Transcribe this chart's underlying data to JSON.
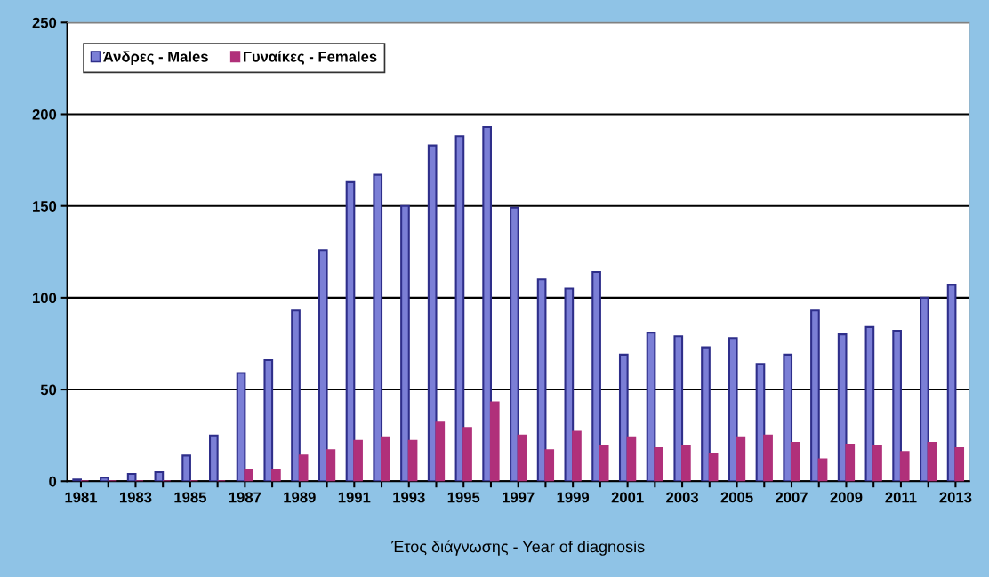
{
  "chart_data": {
    "type": "bar",
    "xlabel": "Έτος διάγνωσης - Year of diagnosis",
    "categories": [
      "1981",
      null,
      "1983",
      null,
      "1985",
      null,
      "1987",
      null,
      "1989",
      null,
      "1991",
      null,
      "1993",
      null,
      "1995",
      null,
      "1997",
      null,
      "1999",
      null,
      "2001",
      null,
      "2003",
      null,
      "2005",
      null,
      "2007",
      null,
      "2009",
      null,
      "2011",
      null,
      "2013"
    ],
    "series": [
      {
        "name": "Άνδρες - Males",
        "color": "#7b7fd6",
        "values": [
          1,
          2,
          4,
          5,
          14,
          25,
          59,
          66,
          93,
          126,
          163,
          167,
          150,
          183,
          188,
          193,
          149,
          110,
          105,
          114,
          69,
          81,
          79,
          73,
          78,
          64,
          69,
          93,
          80,
          84,
          82,
          100,
          107
        ]
      },
      {
        "name": "Γυναίκες - Females",
        "color": "#b0307a",
        "values": [
          0,
          0,
          0,
          0,
          0,
          0,
          6,
          6,
          14,
          17,
          22,
          24,
          22,
          32,
          29,
          43,
          25,
          17,
          27,
          19,
          24,
          18,
          19,
          15,
          24,
          25,
          21,
          12,
          20,
          19,
          16,
          21,
          18
        ]
      }
    ],
    "ylim": [
      0,
      250
    ],
    "yticks": [
      0,
      50,
      100,
      150,
      200,
      250
    ],
    "grid": "y",
    "legend": "top left"
  }
}
